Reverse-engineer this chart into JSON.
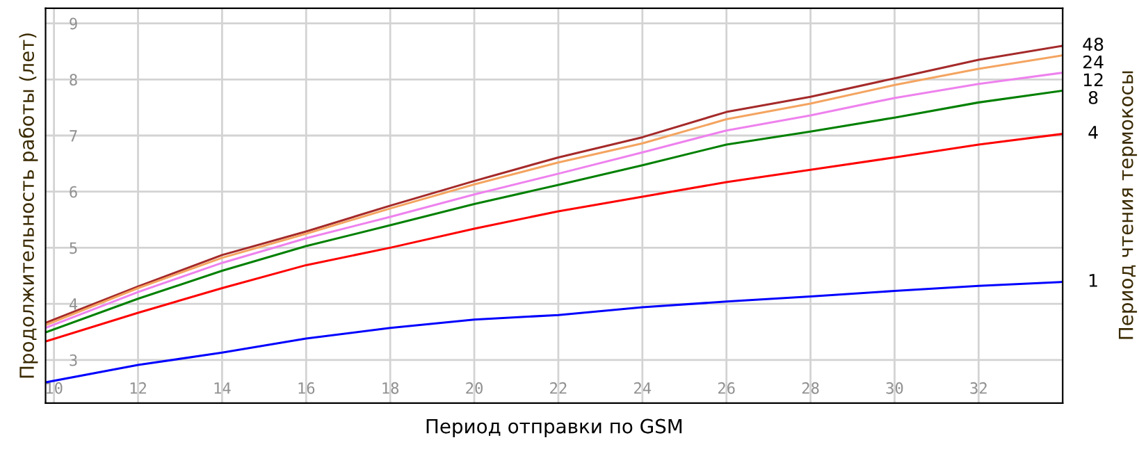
{
  "chart_data": {
    "type": "line",
    "xlabel": "Период отправки по GSM",
    "ylabel": "Продолжительность работы (лет)",
    "legend_title": "Период чтения термокосы",
    "x": [
      9.8,
      12,
      14,
      16,
      18,
      20,
      22,
      24,
      26,
      28,
      30,
      32,
      34
    ],
    "xlim": [
      9.8,
      34
    ],
    "xticks": [
      10,
      12,
      14,
      16,
      18,
      20,
      22,
      24,
      26,
      28,
      30,
      32
    ],
    "ylim": [
      2.23,
      9.27
    ],
    "yticks": [
      3,
      4,
      5,
      6,
      7,
      8,
      9
    ],
    "grid": true,
    "marker": "none",
    "line_style": "solid",
    "series": [
      {
        "name": "48",
        "color": "#a52a2a",
        "values": [
          3.66,
          4.31,
          4.87,
          5.29,
          5.75,
          6.19,
          6.61,
          6.97,
          7.42,
          7.69,
          8.02,
          8.35,
          8.6
        ]
      },
      {
        "name": "24",
        "color": "#f4a460",
        "values": [
          3.62,
          4.28,
          4.82,
          5.25,
          5.7,
          6.13,
          6.52,
          6.86,
          7.29,
          7.57,
          7.9,
          8.19,
          8.43
        ]
      },
      {
        "name": "12",
        "color": "#ee82ee",
        "values": [
          3.57,
          4.21,
          4.73,
          5.17,
          5.55,
          5.95,
          6.32,
          6.7,
          7.09,
          7.36,
          7.67,
          7.92,
          8.12
        ]
      },
      {
        "name": "8",
        "color": "#008000",
        "values": [
          3.49,
          4.09,
          4.59,
          5.03,
          5.4,
          5.78,
          6.12,
          6.47,
          6.84,
          7.07,
          7.32,
          7.59,
          7.8
        ]
      },
      {
        "name": "4",
        "color": "#ff0000",
        "values": [
          3.33,
          3.84,
          4.28,
          4.69,
          5.0,
          5.34,
          5.65,
          5.91,
          6.17,
          6.39,
          6.61,
          6.84,
          7.03
        ]
      },
      {
        "name": "1",
        "color": "#0000ff",
        "values": [
          2.6,
          2.91,
          3.13,
          3.38,
          3.57,
          3.72,
          3.8,
          3.94,
          4.04,
          4.13,
          4.23,
          4.32,
          4.39
        ]
      }
    ]
  }
}
